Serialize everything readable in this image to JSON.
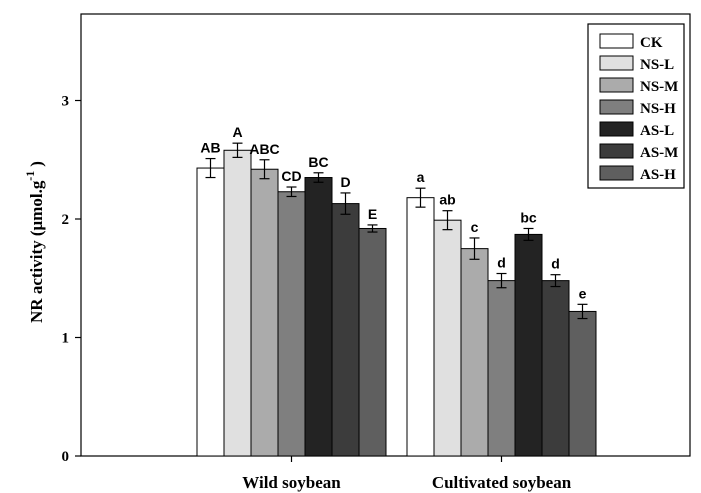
{
  "chart_data": {
    "type": "bar",
    "title": "",
    "xlabel": "",
    "ylabel": "NR activity (μmol.g",
    "ylabel_superscript": "-1",
    "ylabel_close": ")",
    "ylim": [
      0,
      3.73
    ],
    "yticks": [
      0,
      1,
      2,
      3
    ],
    "grid": false,
    "legend_position": "top-right",
    "categories": [
      "Wild soybean",
      "Cultivated soybean"
    ],
    "series": [
      {
        "name": "CK",
        "color": "#ffffff",
        "values": [
          2.43,
          2.18
        ],
        "errors": [
          0.08,
          0.08
        ],
        "labels": [
          "AB",
          "a"
        ]
      },
      {
        "name": "NS-L",
        "color": "#e0e0e0",
        "values": [
          2.58,
          1.99
        ],
        "errors": [
          0.06,
          0.08
        ],
        "labels": [
          "A",
          "ab"
        ]
      },
      {
        "name": "NS-M",
        "color": "#ababab",
        "values": [
          2.42,
          1.75
        ],
        "errors": [
          0.08,
          0.09
        ],
        "labels": [
          "ABC",
          "c"
        ]
      },
      {
        "name": "NS-H",
        "color": "#7f7f7f",
        "values": [
          2.23,
          1.48
        ],
        "errors": [
          0.04,
          0.06
        ],
        "labels": [
          "CD",
          "d"
        ]
      },
      {
        "name": "AS-L",
        "color": "#232323",
        "values": [
          2.35,
          1.87
        ],
        "errors": [
          0.04,
          0.05
        ],
        "labels": [
          "BC",
          "bc"
        ]
      },
      {
        "name": "AS-M",
        "color": "#3c3c3c",
        "values": [
          2.13,
          1.48
        ],
        "errors": [
          0.09,
          0.05
        ],
        "labels": [
          "D",
          "d"
        ]
      },
      {
        "name": "AS-H",
        "color": "#5f5f5f",
        "values": [
          1.92,
          1.22
        ],
        "errors": [
          0.03,
          0.06
        ],
        "labels": [
          "E",
          "e"
        ]
      }
    ]
  }
}
